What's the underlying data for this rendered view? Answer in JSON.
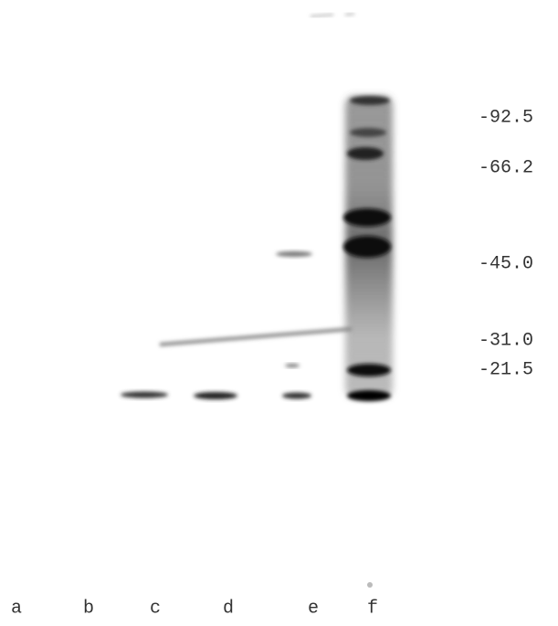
{
  "markers": [
    "-92.5",
    "-66.2",
    "-45.0",
    "-31.0",
    "-21.5"
  ],
  "lanes": [
    "a",
    "b",
    "c",
    "d",
    "e",
    "f"
  ]
}
